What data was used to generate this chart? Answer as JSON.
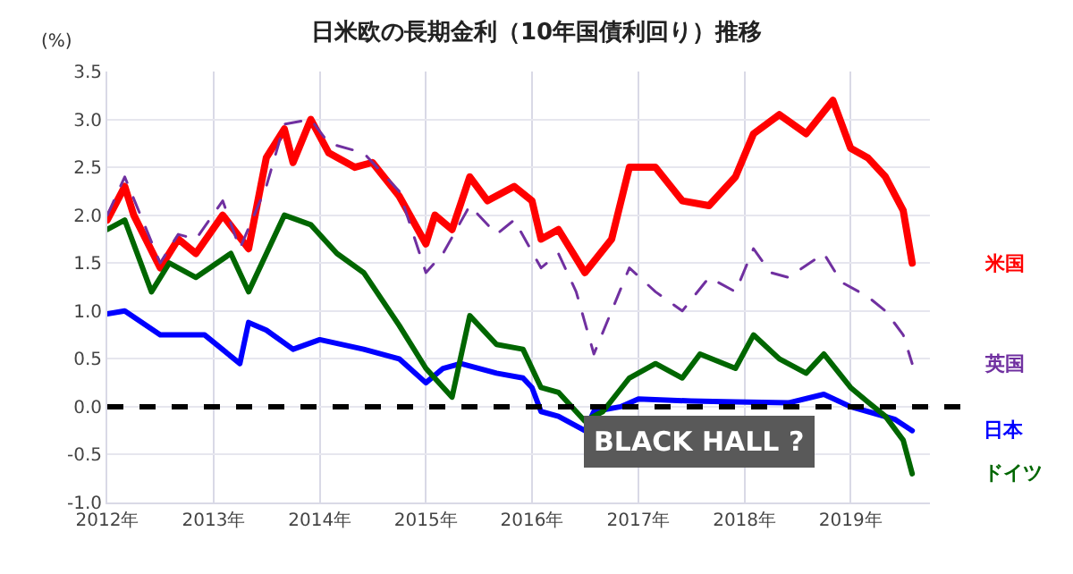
{
  "chart_data": {
    "type": "line",
    "title": "日米欧の長期金利（10年国債利回り）推移",
    "ylabel": "(%)",
    "xlim": [
      "2012-01-01",
      "2019-10-01"
    ],
    "ylim": [
      -1.0,
      3.5
    ],
    "xticks": [
      {
        "value": "2012-01-01",
        "label": "2012年"
      },
      {
        "value": "2013-01-01",
        "label": "2013年"
      },
      {
        "value": "2014-01-01",
        "label": "2014年"
      },
      {
        "value": "2015-01-01",
        "label": "2015年"
      },
      {
        "value": "2016-01-01",
        "label": "2016年"
      },
      {
        "value": "2017-01-01",
        "label": "2017年"
      },
      {
        "value": "2018-01-01",
        "label": "2018年"
      },
      {
        "value": "2019-01-01",
        "label": "2019年"
      }
    ],
    "yticks": [
      {
        "value": 3.5,
        "label": "3.5"
      },
      {
        "value": 3.0,
        "label": "3.0"
      },
      {
        "value": 2.5,
        "label": "2.5"
      },
      {
        "value": 2.0,
        "label": "2.0"
      },
      {
        "value": 1.5,
        "label": "1.5"
      },
      {
        "value": 1.0,
        "label": "1.0"
      },
      {
        "value": 0.5,
        "label": "0.5"
      },
      {
        "value": 0,
        "label": "0.0"
      },
      {
        "value": -0.5,
        "label": "-0.5"
      },
      {
        "value": -1.0,
        "label": "-1.0"
      }
    ],
    "grid": true,
    "legend": false,
    "marker": "none",
    "ref_lines": [
      {
        "axis": "y",
        "value": 0,
        "color": "#000000",
        "line_style": "dashed"
      }
    ],
    "annotations": [
      "BLACK HALL ?"
    ],
    "series": [
      {
        "name": "米国",
        "color": "#ff0000",
        "line_style": "solid",
        "x": [
          "2012-01",
          "2012-03",
          "2012-04",
          "2012-07",
          "2012-09",
          "2012-11",
          "2013-02",
          "2013-05",
          "2013-07",
          "2013-09",
          "2013-10",
          "2013-12",
          "2014-02",
          "2014-05",
          "2014-07",
          "2014-10",
          "2015-01",
          "2015-02",
          "2015-04",
          "2015-06",
          "2015-08",
          "2015-11",
          "2016-01",
          "2016-02",
          "2016-04",
          "2016-06",
          "2016-07",
          "2016-10",
          "2016-12",
          "2017-03",
          "2017-06",
          "2017-09",
          "2017-12",
          "2018-02",
          "2018-05",
          "2018-08",
          "2018-11",
          "2019-01",
          "2019-03",
          "2019-05",
          "2019-07",
          "2019-08"
        ],
        "values": [
          1.95,
          2.3,
          2.0,
          1.45,
          1.75,
          1.6,
          2.0,
          1.65,
          2.6,
          2.9,
          2.55,
          3.0,
          2.65,
          2.5,
          2.55,
          2.2,
          1.7,
          2.0,
          1.85,
          2.4,
          2.15,
          2.3,
          2.15,
          1.75,
          1.85,
          1.55,
          1.4,
          1.75,
          2.5,
          2.5,
          2.15,
          2.1,
          2.4,
          2.85,
          3.05,
          2.85,
          3.2,
          2.7,
          2.6,
          2.4,
          2.05,
          1.5
        ]
      },
      {
        "name": "英国",
        "color": "#7030a0",
        "line_style": "dashed",
        "x": [
          "2012-01",
          "2012-03",
          "2012-07",
          "2012-09",
          "2012-11",
          "2013-02",
          "2013-04",
          "2013-07",
          "2013-09",
          "2013-12",
          "2014-02",
          "2014-06",
          "2014-10",
          "2015-01",
          "2015-03",
          "2015-06",
          "2015-09",
          "2015-11",
          "2016-02",
          "2016-04",
          "2016-06",
          "2016-08",
          "2016-10",
          "2016-12",
          "2017-03",
          "2017-06",
          "2017-09",
          "2017-12",
          "2018-02",
          "2018-04",
          "2018-06",
          "2018-10",
          "2018-12",
          "2019-03",
          "2019-05",
          "2019-07",
          "2019-08"
        ],
        "values": [
          2.0,
          2.4,
          1.5,
          1.8,
          1.75,
          2.15,
          1.65,
          2.3,
          2.95,
          3.0,
          2.75,
          2.65,
          2.25,
          1.4,
          1.6,
          2.1,
          1.8,
          1.95,
          1.45,
          1.6,
          1.2,
          0.55,
          1.0,
          1.45,
          1.2,
          1.0,
          1.35,
          1.2,
          1.65,
          1.4,
          1.35,
          1.6,
          1.3,
          1.15,
          1.0,
          0.75,
          0.45
        ]
      },
      {
        "name": "日本",
        "color": "#0000ff",
        "line_style": "solid",
        "x": [
          "2012-01",
          "2012-03",
          "2012-07",
          "2012-12",
          "2013-04",
          "2013-05",
          "2013-07",
          "2013-10",
          "2014-01",
          "2014-06",
          "2014-10",
          "2015-01",
          "2015-03",
          "2015-05",
          "2015-09",
          "2015-12",
          "2016-01",
          "2016-02",
          "2016-04",
          "2016-07",
          "2016-08",
          "2016-11",
          "2017-01",
          "2017-07",
          "2017-12",
          "2018-06",
          "2018-10",
          "2019-01",
          "2019-03",
          "2019-06",
          "2019-08"
        ],
        "values": [
          0.97,
          1.0,
          0.75,
          0.75,
          0.45,
          0.88,
          0.8,
          0.6,
          0.7,
          0.6,
          0.5,
          0.25,
          0.4,
          0.45,
          0.35,
          0.3,
          0.2,
          -0.05,
          -0.1,
          -0.25,
          -0.05,
          0.0,
          0.08,
          0.06,
          0.05,
          0.04,
          0.13,
          0.0,
          -0.05,
          -0.13,
          -0.25
        ]
      },
      {
        "name": "ドイツ",
        "color": "#006600",
        "line_style": "solid",
        "x": [
          "2012-01",
          "2012-03",
          "2012-06",
          "2012-08",
          "2012-11",
          "2013-03",
          "2013-05",
          "2013-09",
          "2013-12",
          "2014-03",
          "2014-06",
          "2014-10",
          "2015-01",
          "2015-04",
          "2015-06",
          "2015-09",
          "2015-12",
          "2016-02",
          "2016-04",
          "2016-07",
          "2016-09",
          "2016-12",
          "2017-03",
          "2017-06",
          "2017-08",
          "2017-12",
          "2018-02",
          "2018-05",
          "2018-08",
          "2018-10",
          "2019-01",
          "2019-03",
          "2019-05",
          "2019-07",
          "2019-08"
        ],
        "values": [
          1.85,
          1.95,
          1.2,
          1.5,
          1.35,
          1.6,
          1.2,
          2.0,
          1.9,
          1.6,
          1.4,
          0.85,
          0.4,
          0.1,
          0.95,
          0.65,
          0.6,
          0.2,
          0.15,
          -0.15,
          -0.05,
          0.3,
          0.45,
          0.3,
          0.55,
          0.4,
          0.75,
          0.5,
          0.35,
          0.55,
          0.2,
          0.05,
          -0.1,
          -0.35,
          -0.7
        ]
      }
    ]
  }
}
